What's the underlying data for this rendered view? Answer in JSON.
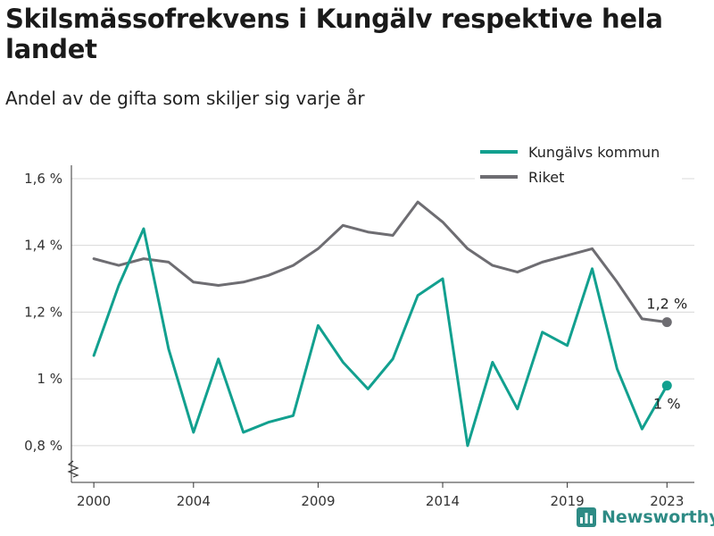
{
  "title": "Skilsmässofrekvens i Kungälv respektive hela landet",
  "subtitle": "Andel av de gifta som skiljer sig varje år",
  "brand": "Newsworthy",
  "colors": {
    "kungalv": "#12a08f",
    "riket": "#6e6d72",
    "grid": "#d8d8d8",
    "axis": "#333333"
  },
  "chart_data": {
    "type": "line",
    "x": [
      2000,
      2001,
      2002,
      2003,
      2004,
      2005,
      2006,
      2007,
      2008,
      2009,
      2010,
      2011,
      2012,
      2013,
      2014,
      2015,
      2016,
      2017,
      2018,
      2019,
      2020,
      2021,
      2022,
      2023
    ],
    "series": [
      {
        "name": "Kungälvs kommun",
        "color": "#12a08f",
        "values": [
          1.07,
          1.28,
          1.45,
          1.09,
          0.84,
          1.06,
          0.84,
          0.87,
          0.89,
          1.16,
          1.05,
          0.97,
          1.06,
          1.25,
          1.3,
          0.8,
          1.05,
          0.91,
          1.14,
          1.1,
          1.33,
          1.03,
          0.85,
          0.98
        ],
        "end_label": "1 %"
      },
      {
        "name": "Riket",
        "color": "#6e6d72",
        "values": [
          1.36,
          1.34,
          1.36,
          1.35,
          1.29,
          1.28,
          1.29,
          1.31,
          1.34,
          1.39,
          1.46,
          1.44,
          1.43,
          1.53,
          1.47,
          1.39,
          1.34,
          1.32,
          1.35,
          1.37,
          1.39,
          1.29,
          1.18,
          1.17
        ],
        "end_label": "1,2 %"
      }
    ],
    "y_ticks": [
      {
        "value": 0.8,
        "label": "0,8 %"
      },
      {
        "value": 1.0,
        "label": "1 %"
      },
      {
        "value": 1.2,
        "label": "1,2 %"
      },
      {
        "value": 1.4,
        "label": "1,4 %"
      },
      {
        "value": 1.6,
        "label": "1,6 %"
      }
    ],
    "x_ticks": [
      2000,
      2004,
      2009,
      2014,
      2019,
      2023
    ],
    "ylim": [
      0.69,
      1.64
    ],
    "xlim": [
      1999.1,
      2024.1
    ],
    "axis_break": true,
    "legend": "top-right",
    "grid": "horizontal"
  }
}
